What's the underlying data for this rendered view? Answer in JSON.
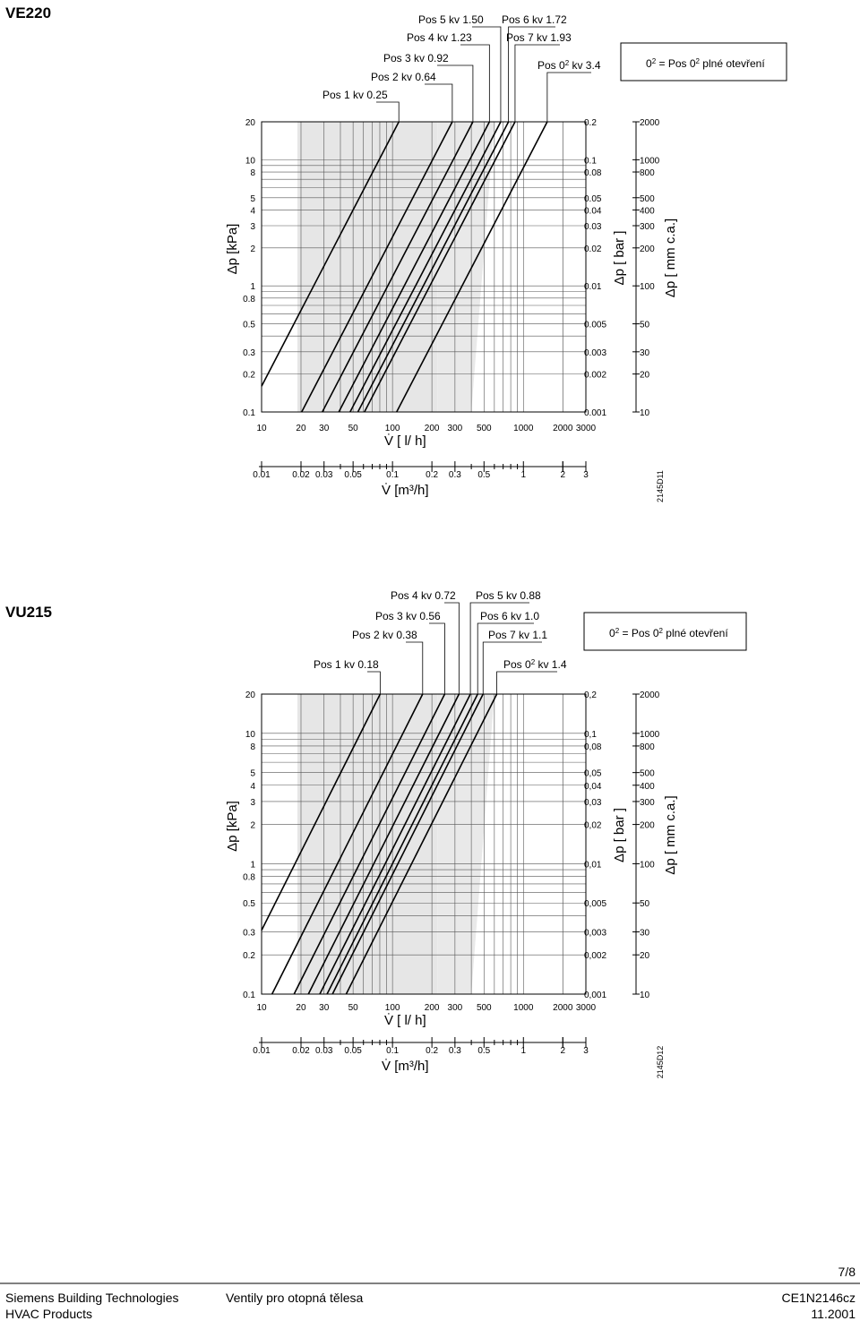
{
  "page": {
    "footer_company": "Siemens Building Technologies",
    "footer_division": "HVAC Products",
    "footer_title": "Ventily pro otopná tělesa",
    "footer_doc": "CE1N2146cz",
    "footer_date": "11.2001",
    "page_number": "7/8"
  },
  "chart_data": [
    {
      "type": "line",
      "title": "VE220",
      "xlabel": "V̇ [ l/ h]",
      "xlabel_m3": "V̇ [m³/h]",
      "ylabel_left": "Δp [kPa]",
      "ylabel_bar": "Δp [ bar ]",
      "ylabel_mm": "Δp [ mm c.a.]",
      "figure_code": "2145D11",
      "legend_note_pre": "0",
      "legend_note_sup": "2",
      "legend_note_post": " = Pos 0",
      "legend_note_sup2": "2",
      "legend_note_end": " plné otevření",
      "xlim": [
        10,
        3000
      ],
      "ylim": [
        0.1,
        20
      ],
      "grid": true,
      "log_scale": true,
      "x_ticks": [
        "10",
        "20",
        "30",
        "50",
        "100",
        "200",
        "300",
        "500",
        "1000",
        "2000",
        "3000"
      ],
      "x_ticks_m3": [
        "0.01",
        "0.02",
        "0.03",
        "0.05",
        "0.1",
        "0.2",
        "0.3",
        "0.5",
        "1",
        "2",
        "3"
      ],
      "y_ticks_kpa": [
        "20",
        "10",
        "8",
        "5",
        "4",
        "3",
        "2",
        "1",
        "0.8",
        "0.5",
        "0.3",
        "0.2",
        "0.1"
      ],
      "y_ticks_bar": [
        "0.2",
        "0.1",
        "0.08",
        "0.05",
        "0.04",
        "0.03",
        "0.02",
        "0.01",
        "0.005",
        "0.003",
        "0.002",
        "0.001"
      ],
      "y_ticks_mm": [
        "2000",
        "1000",
        "800",
        "500",
        "400",
        "300",
        "200",
        "100",
        "50",
        "30",
        "20",
        "10"
      ],
      "series": [
        {
          "name": "Pos 1 kv 0.25",
          "kv": 0.25
        },
        {
          "name": "Pos 2 kv 0.64",
          "kv": 0.64
        },
        {
          "name": "Pos 3 kv 0.92",
          "kv": 0.92
        },
        {
          "name": "Pos 4 kv 1.23",
          "kv": 1.23
        },
        {
          "name": "Pos 5 kv 1.50",
          "kv": 1.5
        },
        {
          "name": "Pos 6 kv 1.72",
          "kv": 1.72
        },
        {
          "name": "Pos 7 kv 1.93",
          "kv": 1.93
        },
        {
          "name_pre": "Pos 0",
          "name_sup": "2",
          "name_post": " kv 3.4",
          "kv": 3.4
        }
      ]
    },
    {
      "type": "line",
      "title": "VU215",
      "xlabel": "V̇ [ l/ h]",
      "xlabel_m3": "V̇ [m³/h]",
      "ylabel_left": "Δp [kPa]",
      "ylabel_bar": "Δp [ bar ]",
      "ylabel_mm": "Δp [ mm c.a.]",
      "figure_code": "2145D12",
      "legend_note_pre": "0",
      "legend_note_sup": "2",
      "legend_note_post": " = Pos 0",
      "legend_note_sup2": "2",
      "legend_note_end": " plné otevření",
      "xlim": [
        10,
        3000
      ],
      "ylim": [
        0.1,
        20
      ],
      "grid": true,
      "log_scale": true,
      "x_ticks": [
        "10",
        "20",
        "30",
        "50",
        "100",
        "200",
        "300",
        "500",
        "1000",
        "2000",
        "3000"
      ],
      "x_ticks_m3": [
        "0.01",
        "0.02",
        "0.03",
        "0.05",
        "0.1",
        "0.2",
        "0.3",
        "0.5",
        "1",
        "2",
        "3"
      ],
      "y_ticks_kpa": [
        "20",
        "10",
        "8",
        "5",
        "4",
        "3",
        "2",
        "1",
        "0.8",
        "0.5",
        "0.3",
        "0.2",
        "0.1"
      ],
      "y_ticks_bar": [
        "0,2",
        "0,1",
        "0,08",
        "0,05",
        "0,04",
        "0,03",
        "0,02",
        "0,01",
        "0,005",
        "0,003",
        "0,002",
        "0,001"
      ],
      "y_ticks_mm": [
        "2000",
        "1000",
        "800",
        "500",
        "400",
        "300",
        "200",
        "100",
        "50",
        "30",
        "20",
        "10"
      ],
      "series": [
        {
          "name": "Pos 1 kv 0.18",
          "kv": 0.18
        },
        {
          "name": "Pos 2 kv 0.38",
          "kv": 0.38
        },
        {
          "name": "Pos 3 kv 0.56",
          "kv": 0.56
        },
        {
          "name": "Pos 4 kv 0.72",
          "kv": 0.72
        },
        {
          "name": "Pos 5 kv 0.88",
          "kv": 0.88
        },
        {
          "name": "Pos 6 kv 1.0",
          "kv": 1.0
        },
        {
          "name": "Pos 7 kv 1.1",
          "kv": 1.1
        },
        {
          "name_pre": "Pos 0",
          "name_sup": "2",
          "name_post": " kv 1.4",
          "kv": 1.4
        }
      ]
    }
  ]
}
